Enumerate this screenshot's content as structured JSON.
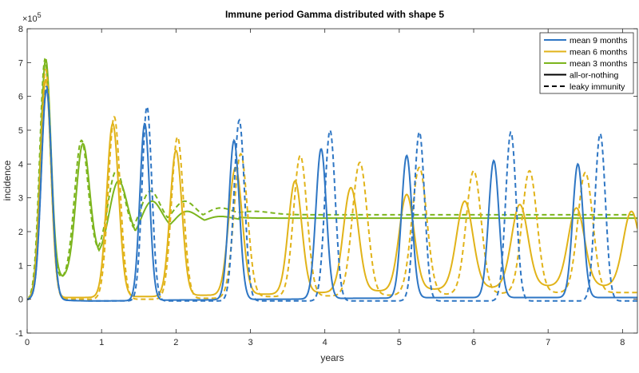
{
  "chart_data": {
    "type": "line",
    "title": "Immune period Gamma distributed with shape 5",
    "xlabel": "years",
    "ylabel": "incidence",
    "y_exponent_label": "×10",
    "y_exponent_power": "5",
    "xlim": [
      0,
      8.2
    ],
    "ylim": [
      -1,
      8
    ],
    "x_ticks": [
      0,
      1,
      2,
      3,
      4,
      5,
      6,
      7,
      8
    ],
    "y_ticks": [
      -1,
      0,
      1,
      2,
      3,
      4,
      5,
      6,
      7,
      8
    ],
    "x_tick_labels": [
      "0",
      "1",
      "2",
      "3",
      "4",
      "5",
      "6",
      "7",
      "8"
    ],
    "y_tick_labels": [
      "-1",
      "0",
      "1",
      "2",
      "3",
      "4",
      "5",
      "6",
      "7",
      "8"
    ],
    "grid": false,
    "legend_position": "top-right",
    "legend": [
      {
        "label": "mean 9 months",
        "color": "#2e76c4",
        "style": "solid"
      },
      {
        "label": "mean 6 months",
        "color": "#e1b319",
        "style": "solid"
      },
      {
        "label": "mean 3 months",
        "color": "#7cb51d",
        "style": "solid"
      },
      {
        "label": "all-or-nothing",
        "color": "#000000",
        "style": "solid"
      },
      {
        "label": "leaky immunity",
        "color": "#000000",
        "style": "dashed"
      }
    ],
    "series": [
      {
        "name": "mean 3 months, all-or-nothing",
        "color": "#7cb51d",
        "dash": false,
        "peaks": [
          [
            0.25,
            7.1,
            0.07
          ],
          [
            0.75,
            4.6,
            0.09
          ],
          [
            1.23,
            3.5,
            0.12
          ],
          [
            1.68,
            2.9,
            0.14
          ],
          [
            2.15,
            2.6,
            0.16
          ],
          [
            2.6,
            2.45,
            0.2
          ],
          [
            3.1,
            2.4,
            0.25
          ]
        ],
        "troughs": [
          [
            0.48,
            0.65
          ],
          [
            0.98,
            1.25
          ],
          [
            1.45,
            1.7
          ],
          [
            1.92,
            2.0
          ],
          [
            2.38,
            2.2
          ],
          [
            2.85,
            2.3
          ]
        ],
        "baseline": 2.4
      },
      {
        "name": "mean 3 months, leaky immunity",
        "color": "#7cb51d",
        "dash": true,
        "peaks": [
          [
            0.24,
            7.1,
            0.07
          ],
          [
            0.73,
            4.7,
            0.09
          ],
          [
            1.2,
            3.8,
            0.11
          ],
          [
            1.66,
            3.2,
            0.13
          ],
          [
            2.12,
            2.9,
            0.15
          ],
          [
            2.6,
            2.7,
            0.18
          ],
          [
            3.05,
            2.6,
            0.22
          ]
        ],
        "troughs": [
          [
            0.46,
            0.6
          ],
          [
            0.96,
            1.35
          ],
          [
            1.42,
            1.9
          ],
          [
            1.9,
            2.2
          ],
          [
            2.35,
            2.35
          ],
          [
            2.82,
            2.45
          ]
        ],
        "baseline": 2.5
      },
      {
        "name": "mean 6 months, all-or-nothing",
        "color": "#e1b319",
        "dash": false,
        "peaks": [
          [
            0.25,
            6.5,
            0.07
          ],
          [
            1.15,
            5.2,
            0.08
          ],
          [
            2.0,
            4.4,
            0.08
          ],
          [
            2.8,
            3.9,
            0.09
          ],
          [
            3.6,
            3.5,
            0.09
          ],
          [
            4.35,
            3.3,
            0.1
          ],
          [
            5.1,
            3.1,
            0.1
          ],
          [
            5.88,
            2.9,
            0.11
          ],
          [
            6.62,
            2.8,
            0.11
          ],
          [
            7.38,
            2.7,
            0.11
          ],
          [
            8.12,
            2.6,
            0.11
          ]
        ],
        "troughs": [
          [
            0.6,
            0.05
          ],
          [
            1.6,
            0.08
          ],
          [
            2.4,
            0.12
          ],
          [
            3.2,
            0.15
          ],
          [
            4.0,
            0.2
          ],
          [
            4.75,
            0.25
          ],
          [
            5.5,
            0.3
          ],
          [
            6.25,
            0.35
          ],
          [
            7.0,
            0.4
          ],
          [
            7.75,
            0.4
          ]
        ],
        "baseline": 0.4
      },
      {
        "name": "mean 6 months, leaky immunity",
        "color": "#e1b319",
        "dash": true,
        "peaks": [
          [
            0.25,
            6.8,
            0.07
          ],
          [
            1.17,
            5.4,
            0.08
          ],
          [
            2.02,
            4.8,
            0.08
          ],
          [
            2.87,
            4.3,
            0.09
          ],
          [
            3.67,
            4.25,
            0.09
          ],
          [
            4.47,
            4.05,
            0.1
          ],
          [
            5.27,
            3.9,
            0.1
          ],
          [
            6.0,
            3.8,
            0.1
          ],
          [
            6.75,
            3.8,
            0.1
          ],
          [
            7.5,
            3.75,
            0.1
          ]
        ],
        "troughs": [
          [
            0.62,
            0.0
          ],
          [
            1.6,
            0.0
          ],
          [
            2.45,
            0.03
          ],
          [
            3.25,
            0.08
          ],
          [
            4.05,
            0.1
          ],
          [
            4.85,
            0.12
          ],
          [
            5.6,
            0.15
          ],
          [
            6.35,
            0.18
          ],
          [
            7.1,
            0.2
          ],
          [
            7.85,
            0.2
          ]
        ],
        "baseline": 0.2
      },
      {
        "name": "mean 9 months, all-or-nothing",
        "color": "#2e76c4",
        "dash": false,
        "peaks": [
          [
            0.26,
            6.2,
            0.07
          ],
          [
            1.58,
            5.2,
            0.065
          ],
          [
            2.78,
            4.7,
            0.07
          ],
          [
            3.95,
            4.45,
            0.07
          ],
          [
            5.1,
            4.25,
            0.07
          ],
          [
            6.27,
            4.1,
            0.07
          ],
          [
            7.4,
            4.0,
            0.07
          ]
        ],
        "troughs": [
          [
            0.9,
            -0.05
          ],
          [
            2.2,
            -0.02
          ],
          [
            3.35,
            0.0
          ],
          [
            4.5,
            0.03
          ],
          [
            5.7,
            0.05
          ],
          [
            6.85,
            0.05
          ],
          [
            8.0,
            0.05
          ]
        ],
        "baseline": 0.05
      },
      {
        "name": "mean 9 months, leaky immunity",
        "color": "#2e76c4",
        "dash": true,
        "peaks": [
          [
            0.26,
            6.3,
            0.07
          ],
          [
            1.61,
            5.7,
            0.065
          ],
          [
            2.85,
            5.3,
            0.07
          ],
          [
            4.07,
            5.0,
            0.07
          ],
          [
            5.27,
            4.95,
            0.07
          ],
          [
            6.5,
            4.95,
            0.07
          ],
          [
            7.7,
            4.9,
            0.07
          ]
        ],
        "troughs": [
          [
            0.95,
            -0.05
          ],
          [
            2.25,
            -0.05
          ],
          [
            3.45,
            -0.05
          ],
          [
            4.65,
            -0.05
          ],
          [
            5.9,
            -0.05
          ],
          [
            7.1,
            -0.05
          ]
        ],
        "baseline": -0.05
      }
    ]
  }
}
